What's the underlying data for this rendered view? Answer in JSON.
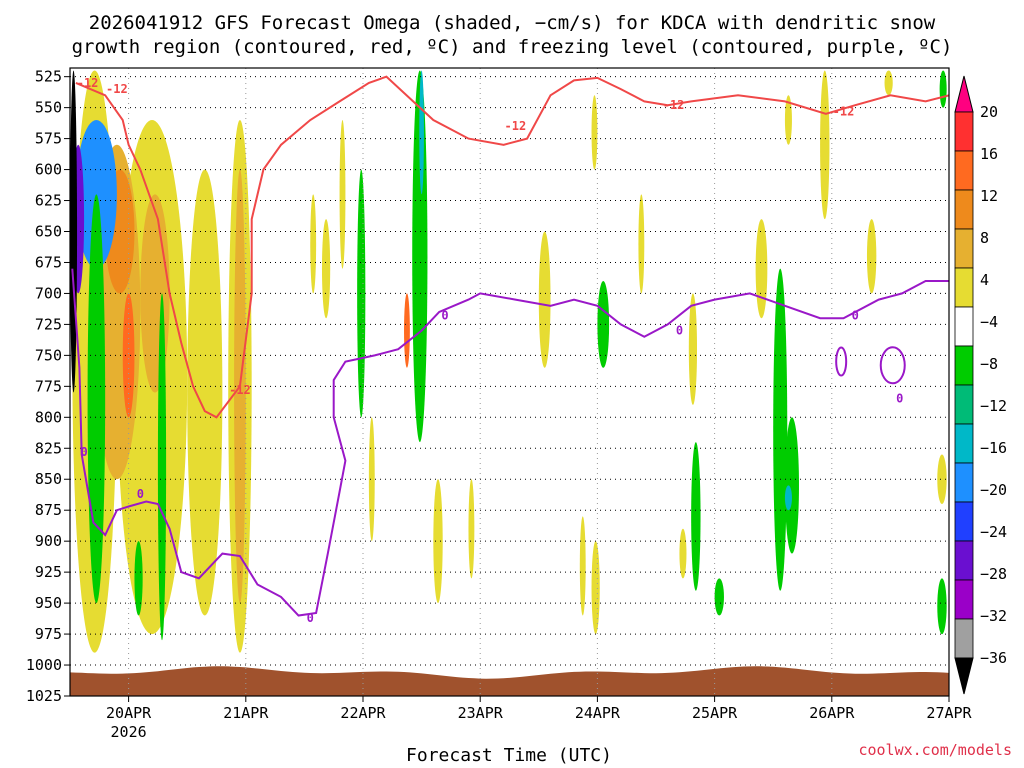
{
  "chart_data": {
    "type": "heatmap",
    "title_line1": "2026041912 GFS Forecast Omega (shaded, −cm/s) for KDCA with dendritic snow",
    "title_line2": "growth region (contoured, red, ºC) and freezing level (contoured, purple, ºC)",
    "xlabel": "Forecast Time (UTC)",
    "credit": "coolwx.com/models",
    "x_ticks": [
      "20APR",
      "21APR",
      "22APR",
      "23APR",
      "24APR",
      "25APR",
      "26APR",
      "27APR"
    ],
    "x_year": "2026",
    "x_range_days": [
      -0.5,
      7.0
    ],
    "y_ticks": [
      525,
      550,
      575,
      600,
      625,
      650,
      675,
      700,
      725,
      750,
      775,
      800,
      825,
      850,
      875,
      900,
      925,
      950,
      975,
      1000,
      1025
    ],
    "y_range_hpa": [
      518,
      1025
    ],
    "grid": true,
    "colorbar": {
      "labels": [
        "20",
        "16",
        "12",
        "8",
        "4",
        "−4",
        "−8",
        "−12",
        "−16",
        "−20",
        "−24",
        "−28",
        "−32",
        "−36"
      ],
      "colors": [
        "#ff0080",
        "#ff3030",
        "#ff6a20",
        "#ee8a1c",
        "#e6b030",
        "#e6dc32",
        "#ffffff",
        "#00cc00",
        "#00bb77",
        "#00b8c8",
        "#1e90ff",
        "#2040ff",
        "#6a0fd0",
        "#9a00c8",
        "#a0a0a0",
        "#000000"
      ]
    },
    "dgz_contour_label": "-12",
    "freezing_contour_label": "0",
    "freezing_level_hpa": [
      [
        -0.48,
        680
      ],
      [
        -0.42,
        760
      ],
      [
        -0.4,
        830
      ],
      [
        -0.3,
        885
      ],
      [
        -0.2,
        895
      ],
      [
        -0.1,
        875
      ],
      [
        0.0,
        872
      ],
      [
        0.15,
        868
      ],
      [
        0.25,
        870
      ],
      [
        0.35,
        890
      ],
      [
        0.45,
        925
      ],
      [
        0.6,
        930
      ],
      [
        0.8,
        910
      ],
      [
        0.95,
        912
      ],
      [
        1.1,
        935
      ],
      [
        1.3,
        945
      ],
      [
        1.45,
        960
      ],
      [
        1.6,
        958
      ],
      [
        1.7,
        910
      ],
      [
        1.8,
        860
      ],
      [
        1.85,
        835
      ],
      [
        1.75,
        800
      ],
      [
        1.75,
        770
      ],
      [
        1.85,
        755
      ],
      [
        2.1,
        750
      ],
      [
        2.3,
        745
      ],
      [
        2.5,
        730
      ],
      [
        2.65,
        715
      ],
      [
        2.9,
        705
      ],
      [
        3.0,
        700
      ],
      [
        3.3,
        705
      ],
      [
        3.6,
        710
      ],
      [
        3.8,
        705
      ],
      [
        4.0,
        710
      ],
      [
        4.2,
        725
      ],
      [
        4.4,
        735
      ],
      [
        4.6,
        725
      ],
      [
        4.8,
        710
      ],
      [
        5.0,
        705
      ],
      [
        5.3,
        700
      ],
      [
        5.6,
        710
      ],
      [
        5.9,
        720
      ],
      [
        6.1,
        720
      ],
      [
        6.4,
        705
      ],
      [
        6.6,
        700
      ],
      [
        6.8,
        690
      ],
      [
        7.0,
        690
      ]
    ],
    "dgz_contour_hpa": [
      [
        -0.45,
        530
      ],
      [
        -0.2,
        540
      ],
      [
        -0.05,
        560
      ],
      [
        0.0,
        580
      ],
      [
        0.1,
        600
      ],
      [
        0.25,
        640
      ],
      [
        0.35,
        700
      ],
      [
        0.45,
        740
      ],
      [
        0.55,
        775
      ],
      [
        0.65,
        795
      ],
      [
        0.75,
        800
      ],
      [
        0.95,
        775
      ],
      [
        1.05,
        700
      ],
      [
        1.05,
        640
      ],
      [
        1.15,
        600
      ],
      [
        1.3,
        580
      ],
      [
        1.55,
        560
      ],
      [
        1.8,
        545
      ],
      [
        2.05,
        530
      ],
      [
        2.2,
        525
      ],
      [
        2.6,
        560
      ],
      [
        2.9,
        575
      ],
      [
        3.2,
        580
      ],
      [
        3.4,
        575
      ],
      [
        3.6,
        540
      ],
      [
        3.8,
        528
      ],
      [
        4.0,
        526
      ],
      [
        4.2,
        535
      ],
      [
        4.4,
        545
      ],
      [
        4.6,
        548
      ],
      [
        4.8,
        545
      ],
      [
        5.2,
        540
      ],
      [
        5.6,
        545
      ],
      [
        5.95,
        555
      ],
      [
        6.2,
        548
      ],
      [
        6.5,
        540
      ],
      [
        6.8,
        545
      ],
      [
        7.0,
        540
      ]
    ]
  }
}
